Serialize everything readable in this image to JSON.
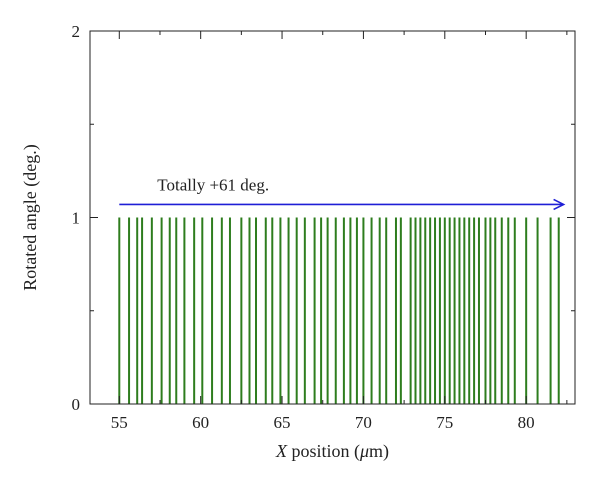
{
  "chart_data": {
    "type": "bar",
    "title": "",
    "xlabel_italic": "X",
    "xlabel_rest": " position (",
    "xlabel_mu": "μ",
    "xlabel_unit": "m)",
    "ylabel": "Rotated angle (deg.)",
    "xlim": [
      53.2,
      83.0
    ],
    "ylim": [
      0,
      2
    ],
    "x_ticks": [
      55,
      60,
      65,
      70,
      75,
      80
    ],
    "y_ticks": [
      0,
      1,
      2
    ],
    "grid": false,
    "series": [
      {
        "color": "#2e7d1e",
        "x": [
          55.0,
          55.6,
          56.1,
          56.4,
          57.0,
          57.6,
          58.1,
          58.5,
          59.0,
          59.6,
          60.1,
          60.7,
          61.3,
          61.8,
          62.5,
          63.0,
          63.4,
          64.0,
          64.4,
          64.9,
          65.4,
          65.9,
          66.4,
          67.0,
          67.4,
          67.8,
          68.3,
          68.8,
          69.2,
          69.6,
          70.0,
          70.5,
          71.0,
          71.4,
          72.0,
          72.3,
          72.9,
          73.2,
          73.5,
          73.8,
          74.1,
          74.4,
          74.7,
          75.0,
          75.3,
          75.6,
          75.9,
          76.2,
          76.5,
          76.8,
          77.1,
          77.5,
          77.8,
          78.1,
          78.5,
          78.9,
          79.3,
          80.0,
          80.7,
          81.5,
          82.0
        ],
        "values": [
          1,
          1,
          1,
          1,
          1,
          1,
          1,
          1,
          1,
          1,
          1,
          1,
          1,
          1,
          1,
          1,
          1,
          1,
          1,
          1,
          1,
          1,
          1,
          1,
          1,
          1,
          1,
          1,
          1,
          1,
          1,
          1,
          1,
          1,
          1,
          1,
          1,
          1,
          1,
          1,
          1,
          1,
          1,
          1,
          1,
          1,
          1,
          1,
          1,
          1,
          1,
          1,
          1,
          1,
          1,
          1,
          1,
          1,
          1,
          1,
          1
        ]
      }
    ],
    "annotation": {
      "text": "Totally +61 deg.",
      "arrow_color": "#1f1fd6",
      "arrow_from_x": 55.0,
      "arrow_to_x": 82.3,
      "arrow_y": 1.07
    }
  }
}
